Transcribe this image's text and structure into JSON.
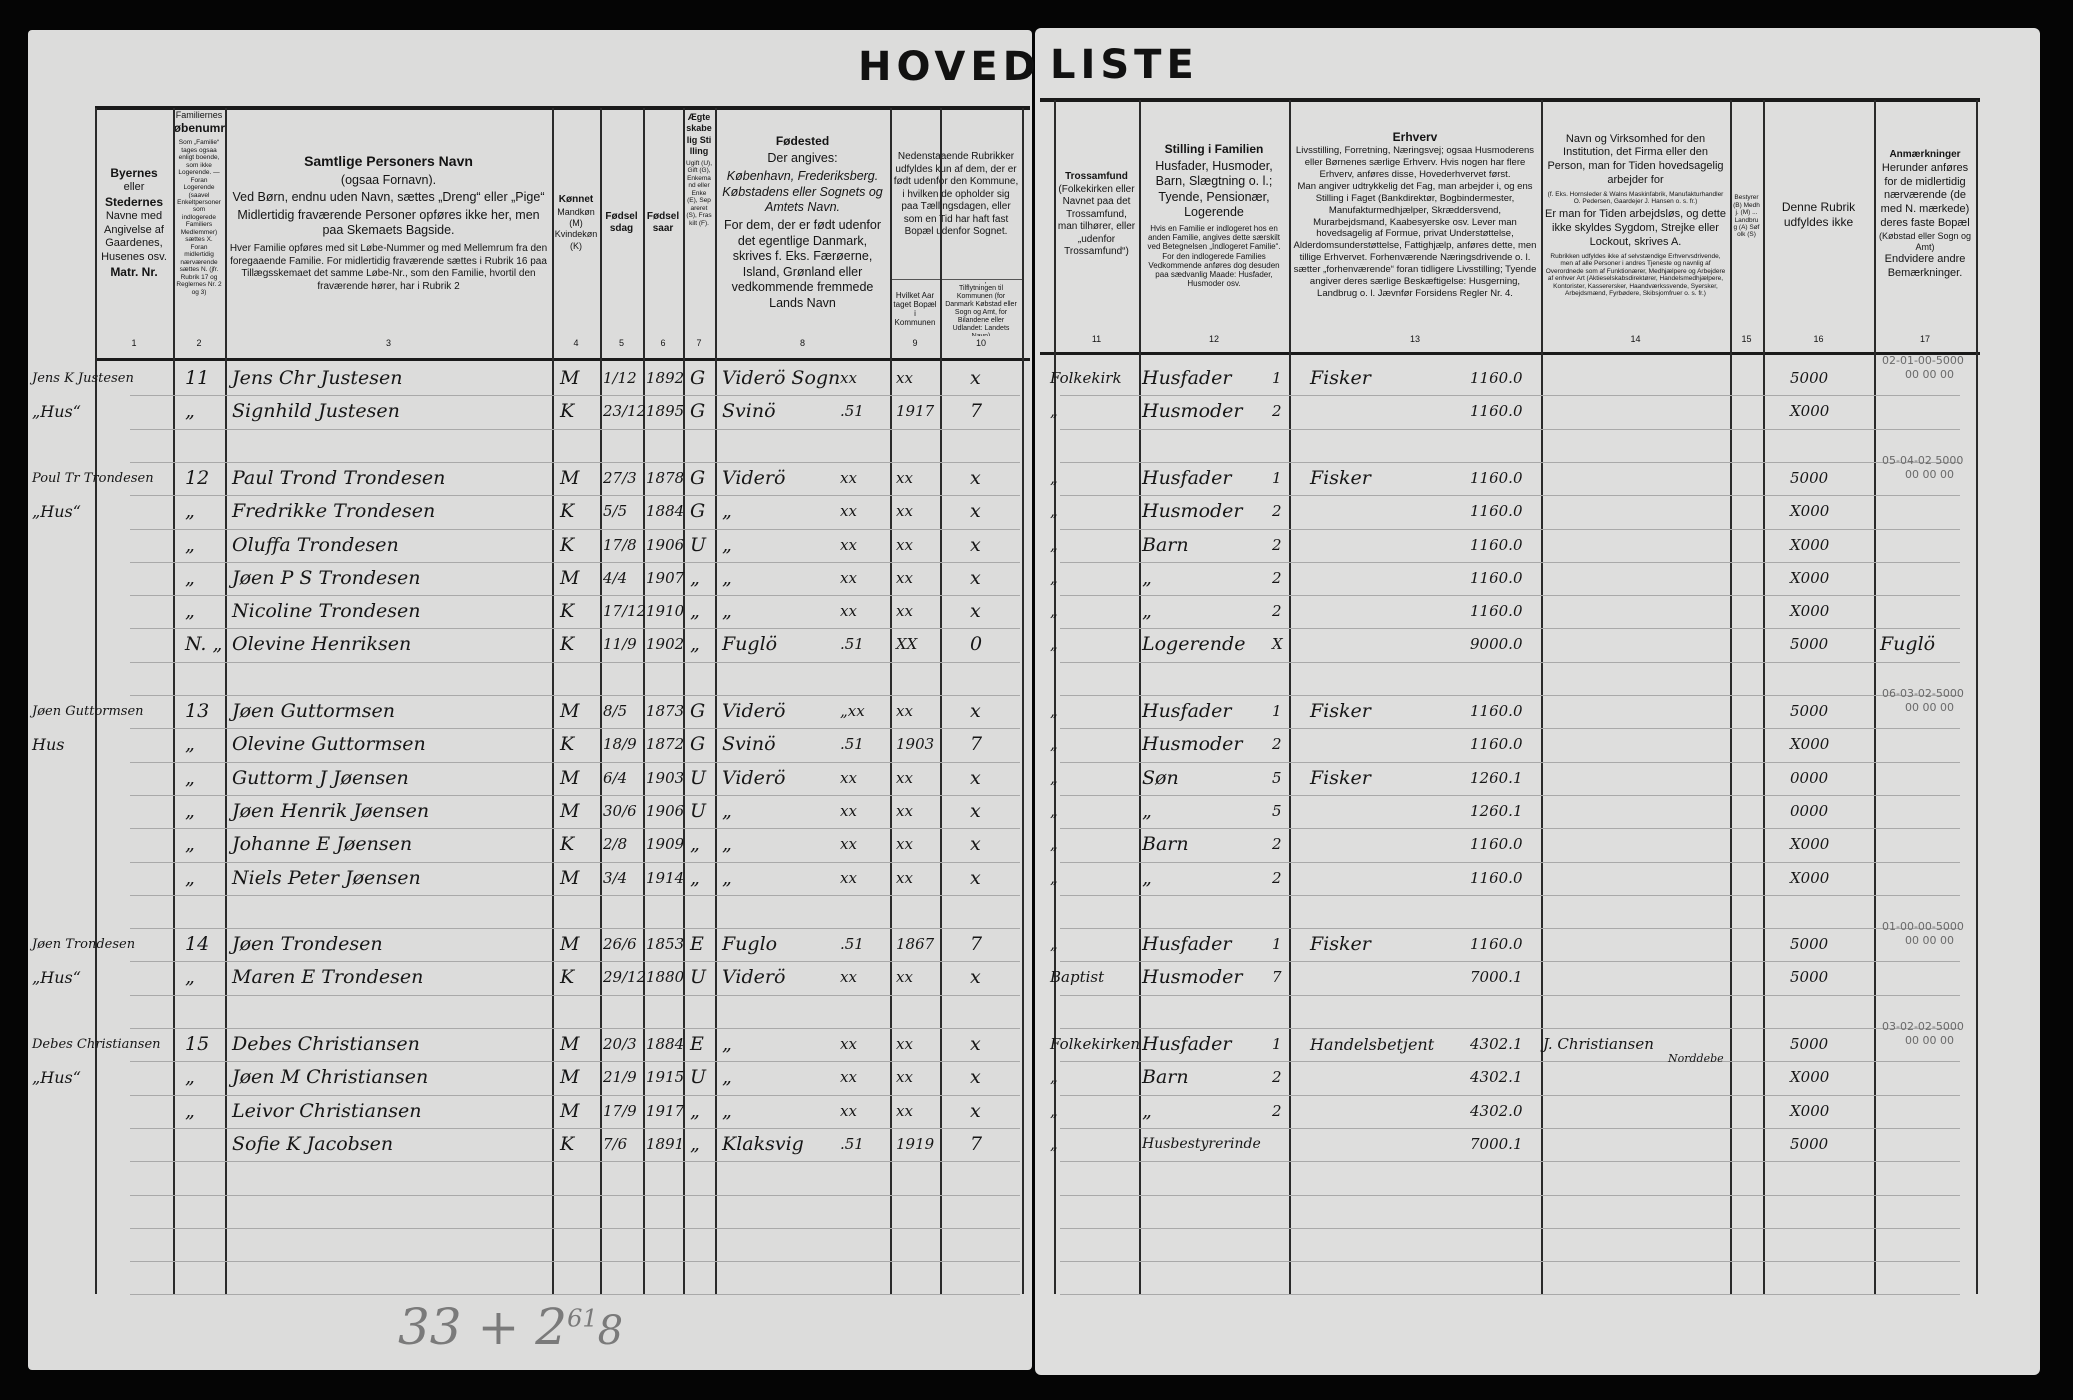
{
  "title": {
    "left": "HOVED",
    "right": "LISTE"
  },
  "header": {
    "c1": {
      "a": "Byernes",
      "b": "eller",
      "c": "Stedernes",
      "d": "Navne med Angivelse af Gaardenes, Husenes osv.",
      "e": "Matr. Nr.",
      "num": "1"
    },
    "c2": {
      "a": "Familiernes",
      "b": "Løbenumre",
      "s": "Som „Familie“ tages ogsaa enligt boende, som ikke Logerende. — Foran Logerende (saavel Enkeltpersoner som indlogerede Familiers Medlemmer) sættes X. Foran midlertidig nærværende sættes N. (jfr. Rubrik 17 og Reglernes Nr. 2 og 3)",
      "num": "2"
    },
    "c3": {
      "a": "Samtlige Personers Navn",
      "b": "(ogsaa Fornavn).",
      "c": "Ved Børn, endnu uden Navn, sættes „Dreng“ eller „Pige“",
      "d": "Midlertidig fraværende Personer opføres ikke her, men paa Skemaets Bagside.",
      "s": "Hver Familie opføres med sit Løbe-Nummer og med Mellemrum fra den foregaaende Familie. For midlertidig fraværende sættes i Rubrik 16 paa Tillægsskemaet det samme Løbe-Nr., som den Familie, hvortil den fraværende hører, har i Rubrik 2",
      "num": "3"
    },
    "c4": {
      "a": "Kønnet",
      "b": "Mandkøn (M) Kvindekøn (K)",
      "num": "4"
    },
    "c5": {
      "a": "Fødselsdag",
      "num": "5"
    },
    "c6": {
      "a": "Fødselsaar",
      "num": "6"
    },
    "c7": {
      "a": "Ægteskabelig Stilling",
      "s": "Ugift (U), Gift (G), Enkemand eller Enke (E), Separeret (S), Fraskilt (F).",
      "num": "7"
    },
    "c8": {
      "a": "Fødested",
      "b": "Der angives:",
      "c": "København, Frederiksberg. Købstadens eller Sognets og Amtets Navn.",
      "d": "For dem, der er født udenfor det egentlige Danmark, skrives f. Eks. Færøerne, Island, Grønland eller vedkommende fremmede Lands Navn",
      "num": "8"
    },
    "c910": {
      "a": "Nedenstaaende Rubrikker udfyldes kun af dem, der er født udenfor den Kommune, i hvilken de opholder sig paa Tællingsdagen, eller som en Tid har haft fast Bopæl udenfor Sognet."
    },
    "c9": {
      "s": "Hvilket Aar taget Bopæl i Kommunen",
      "num": "9"
    },
    "c10": {
      "s": "Sidste Bopæl før Tilflytningen til Kommunen (for Danmark Købstad eller Sogn og Amt, for Bilandene eller Udlandet: Landets Navn)",
      "num": "10"
    },
    "c11": {
      "a": "Trossamfund",
      "b": "(Folkekirken eller Navnet paa det Trossamfund, man tilhører, eller „udenfor Trossamfund“)",
      "num": "11"
    },
    "c12": {
      "a": "Stilling i Familien",
      "b": "Husfader, Husmoder, Barn, Slægtning o. l.; Tyende, Pensionær, Logerende",
      "s": "Hvis en Familie er indlogeret hos en anden Familie, angives dette særskilt ved Betegnelsen „Indlogeret Familie“. For den indlogerede Families Vedkommende anføres dog desuden paa sædvanlig Maade: Husfader, Husmoder osv.",
      "num": "12"
    },
    "c13": {
      "a": "Erhverv",
      "b": "Livsstilling, Forretning, Næringsvej; ogsaa Husmoderens eller Børnenes særlige Erhverv. Hvis nogen har flere Erhverv, anføres disse, Hovederhvervet først.",
      "c": "Man angiver udtrykkelig det Fag, man arbejder i, og ens Stilling i Faget (Bankdirektør, Bogbindermester, Manufakturmedhjælper, Skræddersvend, Murarbejdsmand, Kaabesyerske osv. Lever man hovedsagelig af Formue, privat Understøttelse, Alderdomsunderstøttelse, Fattighjælp, anføres dette, men tillige Erhvervet. Forhenværende Næringsdrivende o. l. sætter „forhenværende“ foran tidligere Livsstilling; Tyende angiver deres særlige Beskæftigelse: Husgerning, Landbrug o. l. Jævnfør Forsidens Regler Nr. 4.",
      "num": "13"
    },
    "c14": {
      "a": "Navn og Virksomhed for den Institution, det Firma eller den Person, man for Tiden hovedsagelig arbejder for",
      "s": "(f. Eks. Hornsleder & Walns Maskinfabrik, Manufakturhandler O. Pedersen, Gaardejer J. Hansen o. s. fr.)",
      "b": "Er man for Tiden arbejdsløs, og dette ikke skyldes Sygdom, Strejke eller Lockout, skrives A.",
      "s2": "Rubrikken udfyldes ikke af selvstændige Erhvervsdrivende, men af alle Personer i andres Tjeneste og navnlig af Overordnede som af Funktionærer, Medhjælpere og Arbejdere af enhver Art (Aktieselskabsdirektører, Handelsmedhjælpere, Kontorister, Kasserersker, Haandværkssvende, Syersker, Arbejdsmænd, Fyrbødere, Skibsjomfruer o. s. fr.)",
      "num": "14"
    },
    "c15": {
      "s": "Bestyrer (B) Medhj. (M) ... Landbrug (A) Søfolk (S)",
      "num": "15"
    },
    "c16": {
      "a": "Denne Rubrik udfyldes ikke",
      "num": "16"
    },
    "c17": {
      "a": "Anmærkninger",
      "b": "Herunder anføres for de midlertidig nærværende (de med N. mærkede) deres faste Bopæl",
      "s": "(Købstad eller Sogn og Amt)",
      "c": "Endvidere andre Bemærkninger.",
      "num": "17"
    }
  },
  "rows": [
    {
      "place": "Jens K Justesen",
      "nr": "11",
      "name": "Jens Chr Justesen",
      "sex": "M",
      "bday": "1/12",
      "year": "1892",
      "marital": "G",
      "birthplace": "Viderö Sogn",
      "bpnote": "xx",
      "col9": "xx",
      "col10": "x",
      "relig": "Folkekirk",
      "role": "Husfader",
      "rolenum": "1",
      "occ": "Fisker",
      "code13": "1160.0",
      "employer": "",
      "code16": "5000",
      "remark": "02-01-00-5000",
      "remark2": "00 00 00"
    },
    {
      "place": "„Hus“",
      "nr": "„",
      "name": "Signhild Justesen",
      "sex": "K",
      "bday": "23/12",
      "year": "1895",
      "marital": "G",
      "birthplace": "Svinö",
      "bpnote": ".51",
      "col9": "1917",
      "col10": "7",
      "relig": "„",
      "role": "Husmoder",
      "rolenum": "2",
      "occ": "",
      "code13": "1160.0",
      "employer": "",
      "code16": "X000",
      "remark": "",
      "remark2": ""
    },
    {},
    {
      "place": "Poul Tr Trondesen",
      "nr": "12",
      "name": "Paul Trond Trondesen",
      "sex": "M",
      "bday": "27/3",
      "year": "1878",
      "marital": "G",
      "birthplace": "Viderö",
      "bpnote": "xx",
      "col9": "xx",
      "col10": "x",
      "relig": "„",
      "role": "Husfader",
      "rolenum": "1",
      "occ": "Fisker",
      "code13": "1160.0",
      "employer": "",
      "code16": "5000",
      "remark": "05-04-02 5000",
      "remark2": "00 00 00"
    },
    {
      "place": "„Hus“",
      "nr": "„",
      "name": "Fredrikke Trondesen",
      "sex": "K",
      "bday": "5/5",
      "year": "1884",
      "marital": "G",
      "birthplace": "„",
      "bpnote": "xx",
      "col9": "xx",
      "col10": "x",
      "relig": "„",
      "role": "Husmoder",
      "rolenum": "2",
      "occ": "",
      "code13": "1160.0",
      "employer": "",
      "code16": "X000",
      "remark": "",
      "remark2": ""
    },
    {
      "place": "",
      "nr": "„",
      "name": "Oluffa Trondesen",
      "sex": "K",
      "bday": "17/8",
      "year": "1906",
      "marital": "U",
      "birthplace": "„",
      "bpnote": "xx",
      "col9": "xx",
      "col10": "x",
      "relig": "„",
      "role": "Barn",
      "rolenum": "2",
      "occ": "",
      "code13": "1160.0",
      "employer": "",
      "code16": "X000",
      "remark": "",
      "remark2": ""
    },
    {
      "place": "",
      "nr": "„",
      "name": "Jøen P S Trondesen",
      "sex": "M",
      "bday": "4/4",
      "year": "1907",
      "marital": "„",
      "birthplace": "„",
      "bpnote": "xx",
      "col9": "xx",
      "col10": "x",
      "relig": "„",
      "role": "„",
      "rolenum": "2",
      "occ": "",
      "code13": "1160.0",
      "employer": "",
      "code16": "X000",
      "remark": "",
      "remark2": ""
    },
    {
      "place": "",
      "nr": "„",
      "name": "Nicoline Trondesen",
      "sex": "K",
      "bday": "17/12",
      "year": "1910",
      "marital": "„",
      "birthplace": "„",
      "bpnote": "xx",
      "col9": "xx",
      "col10": "x",
      "relig": "„",
      "role": "„",
      "rolenum": "2",
      "occ": "",
      "code13": "1160.0",
      "employer": "",
      "code16": "X000",
      "remark": "",
      "remark2": ""
    },
    {
      "place": "",
      "nr": "N. „",
      "name": "Olevine Henriksen",
      "sex": "K",
      "bday": "11/9",
      "year": "1902",
      "marital": "„",
      "birthplace": "Fuglö",
      "bpnote": ".51",
      "col9": "XX",
      "col10": "0",
      "relig": "„",
      "role": "Logerende",
      "rolenum": "X",
      "occ": "",
      "code13": "9000.0",
      "employer": "",
      "code16": "5000",
      "remark": "Fuglö",
      "remark2": ""
    },
    {},
    {
      "place": "Jøen Guttormsen",
      "nr": "13",
      "name": "Jøen Guttormsen",
      "sex": "M",
      "bday": "8/5",
      "year": "1873",
      "marital": "G",
      "birthplace": "Viderö",
      "bpnote": "„xx",
      "col9": "xx",
      "col10": "x",
      "relig": "„",
      "role": "Husfader",
      "rolenum": "1",
      "occ": "Fisker",
      "code13": "1160.0",
      "employer": "",
      "code16": "5000",
      "remark": "06-03-02-5000",
      "remark2": "00 00 00"
    },
    {
      "place": "Hus",
      "nr": "„",
      "name": "Olevine Guttormsen",
      "sex": "K",
      "bday": "18/9",
      "year": "1872",
      "marital": "G",
      "birthplace": "Svinö",
      "bpnote": ".51",
      "col9": "1903",
      "col10": "7",
      "relig": "„",
      "role": "Husmoder",
      "rolenum": "2",
      "occ": "",
      "code13": "1160.0",
      "employer": "",
      "code16": "X000",
      "remark": "",
      "remark2": ""
    },
    {
      "place": "",
      "nr": "„",
      "name": "Guttorm J Jøensen",
      "sex": "M",
      "bday": "6/4",
      "year": "1903",
      "marital": "U",
      "birthplace": "Viderö",
      "bpnote": "xx",
      "col9": "xx",
      "col10": "x",
      "relig": "„",
      "role": "Søn",
      "rolenum": "5",
      "occ": "Fisker",
      "code13": "1260.1",
      "employer": "",
      "code16": "0000",
      "remark": "",
      "remark2": ""
    },
    {
      "place": "",
      "nr": "„",
      "name": "Jøen Henrik Jøensen",
      "sex": "M",
      "bday": "30/6",
      "year": "1906",
      "marital": "U",
      "birthplace": "„",
      "bpnote": "xx",
      "col9": "xx",
      "col10": "x",
      "relig": "„",
      "role": "„",
      "rolenum": "5",
      "occ": "",
      "code13": "1260.1",
      "employer": "",
      "code16": "0000",
      "remark": "",
      "remark2": ""
    },
    {
      "place": "",
      "nr": "„",
      "name": "Johanne E Jøensen",
      "sex": "K",
      "bday": "2/8",
      "year": "1909",
      "marital": "„",
      "birthplace": "„",
      "bpnote": "xx",
      "col9": "xx",
      "col10": "x",
      "relig": "„",
      "role": "Barn",
      "rolenum": "2",
      "occ": "",
      "code13": "1160.0",
      "employer": "",
      "code16": "X000",
      "remark": "",
      "remark2": ""
    },
    {
      "place": "",
      "nr": "„",
      "name": "Niels Peter Jøensen",
      "sex": "M",
      "bday": "3/4",
      "year": "1914",
      "marital": "„",
      "birthplace": "„",
      "bpnote": "xx",
      "col9": "xx",
      "col10": "x",
      "relig": "„",
      "role": "„",
      "rolenum": "2",
      "occ": "",
      "code13": "1160.0",
      "employer": "",
      "code16": "X000",
      "remark": "",
      "remark2": ""
    },
    {},
    {
      "place": "Jøen Trondesen",
      "nr": "14",
      "name": "Jøen Trondesen",
      "sex": "M",
      "bday": "26/6",
      "year": "1853",
      "marital": "E",
      "birthplace": "Fuglo",
      "bpnote": ".51",
      "col9": "1867",
      "col10": "7",
      "relig": "„",
      "role": "Husfader",
      "rolenum": "1",
      "occ": "Fisker",
      "code13": "1160.0",
      "employer": "",
      "code16": "5000",
      "remark": "01-00-00-5000",
      "remark2": "00 00 00"
    },
    {
      "place": "„Hus“",
      "nr": "„",
      "name": "Maren E Trondesen",
      "sex": "K",
      "bday": "29/12",
      "year": "1880",
      "marital": "U",
      "birthplace": "Viderö",
      "bpnote": "xx",
      "col9": "xx",
      "col10": "x",
      "relig": "Baptist",
      "role": "Husmoder",
      "rolenum": "7",
      "occ": "",
      "code13": "7000.1",
      "employer": "",
      "code16": "5000",
      "remark": "",
      "remark2": ""
    },
    {},
    {
      "place": "Debes Christiansen",
      "nr": "15",
      "name": "Debes Christiansen",
      "sex": "M",
      "bday": "20/3",
      "year": "1884",
      "marital": "E",
      "birthplace": "„",
      "bpnote": "xx",
      "col9": "xx",
      "col10": "x",
      "relig": "Folkekirken",
      "role": "Husfader",
      "rolenum": "1",
      "occ": "Handelsbetjent",
      "code13": "4302.1",
      "employer": "J. Christiansen",
      "employer2": "Norddebe",
      "code16": "5000",
      "remark": "03-02-02-5000",
      "remark2": "00 00 00"
    },
    {
      "place": "„Hus“",
      "nr": "„",
      "name": "Jøen M Christiansen",
      "sex": "M",
      "bday": "21/9",
      "year": "1915",
      "marital": "U",
      "birthplace": "„",
      "bpnote": "xx",
      "col9": "xx",
      "col10": "x",
      "relig": "„",
      "role": "Barn",
      "rolenum": "2",
      "occ": "",
      "code13": "4302.1",
      "employer": "",
      "code16": "X000",
      "remark": "",
      "remark2": ""
    },
    {
      "place": "",
      "nr": "„",
      "name": "Leivor Christiansen",
      "sex": "M",
      "bday": "17/9",
      "year": "1917",
      "marital": "„",
      "birthplace": "„",
      "bpnote": "xx",
      "col9": "xx",
      "col10": "x",
      "relig": "„",
      "role": "„",
      "rolenum": "2",
      "occ": "",
      "code13": "4302.0",
      "employer": "",
      "code16": "X000",
      "remark": "",
      "remark2": ""
    },
    {
      "place": "",
      "nr": "",
      "name": "Sofie K Jacobsen",
      "sex": "K",
      "bday": "7/6",
      "year": "1891",
      "marital": "„",
      "birthplace": "Klaksvig",
      "bpnote": ".51",
      "col9": "1919",
      "col10": "7",
      "relig": "„",
      "role": "Husbestyrerinde",
      "rolenum": "",
      "occ": "",
      "code13": "7000.1",
      "employer": "",
      "code16": "5000",
      "remark": "",
      "remark2": ""
    },
    {},
    {},
    {},
    {}
  ],
  "pencil_note": {
    "main": "33 + 2",
    "sup": "61",
    "sub": "8"
  }
}
